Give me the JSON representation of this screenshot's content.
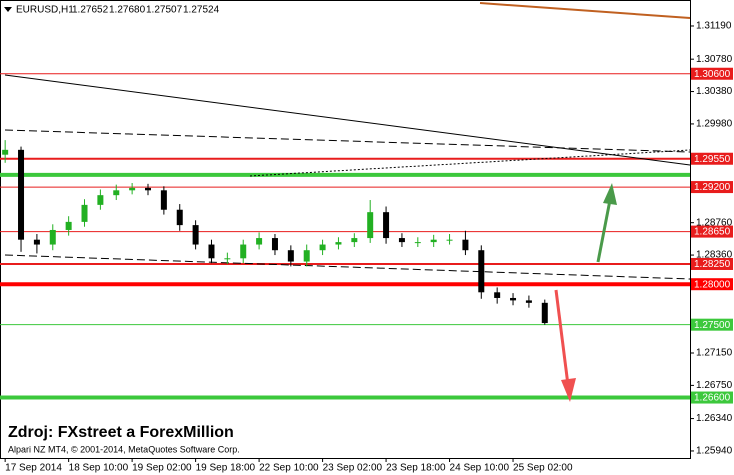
{
  "chart_data": {
    "type": "candlestick",
    "header": {
      "symbol": "EURUSD,H1",
      "quotes": [
        "1.27652",
        "1.27680",
        "1.27507",
        "1.27524"
      ]
    },
    "watermark": "Zdroj: FXstreet a ForexMillion",
    "copyright": "Alpari NZ MT4, © 2001-2014, MetaQuotes Software Corp.",
    "up_color": "#22b022",
    "down_color": "#000000",
    "x": [
      0,
      4,
      8,
      12,
      16,
      20,
      24,
      28,
      32,
      36,
      40,
      44,
      48,
      52,
      56,
      60,
      64,
      68,
      72,
      76,
      80,
      84,
      88,
      92,
      96,
      100,
      104,
      108,
      112,
      116,
      120,
      124,
      128,
      132,
      136
    ],
    "open": [
      1.296,
      1.2966,
      1.2855,
      1.2849,
      1.2867,
      1.2877,
      1.2898,
      1.291,
      1.2916,
      1.2919,
      1.2916,
      1.2892,
      1.2873,
      1.2849,
      1.2832,
      1.2832,
      1.2849,
      1.2857,
      1.2842,
      1.2828,
      1.2842,
      1.2849,
      1.2852,
      1.2857,
      1.2889,
      1.2857,
      1.2852,
      1.2852,
      1.2855,
      1.2855,
      1.2842,
      1.279,
      1.2783,
      1.278,
      1.2777
    ],
    "high": [
      1.2978,
      1.297,
      1.2862,
      1.2874,
      1.2884,
      1.2905,
      1.2917,
      1.2923,
      1.2925,
      1.2924,
      1.2921,
      1.2899,
      1.2879,
      1.2855,
      1.2839,
      1.2855,
      1.2864,
      1.2862,
      1.2848,
      1.2849,
      1.2855,
      1.2858,
      1.2863,
      1.2904,
      1.2896,
      1.2863,
      1.2858,
      1.2861,
      1.2862,
      1.2866,
      1.2848,
      1.2796,
      1.2789,
      1.2786,
      1.2781
    ],
    "low": [
      1.295,
      1.284,
      1.2838,
      1.2842,
      1.286,
      1.2871,
      1.2892,
      1.2904,
      1.2911,
      1.291,
      1.2886,
      1.2866,
      1.2843,
      1.2826,
      1.2825,
      1.2826,
      1.2843,
      1.2836,
      1.2822,
      1.2822,
      1.2836,
      1.2843,
      1.2846,
      1.2851,
      1.285,
      1.2846,
      1.2846,
      1.2846,
      1.2849,
      1.2836,
      1.2782,
      1.2776,
      1.2774,
      1.2771,
      1.275
    ],
    "close": [
      1.2966,
      1.2855,
      1.2849,
      1.2867,
      1.2877,
      1.2898,
      1.291,
      1.2916,
      1.2919,
      1.2916,
      1.2892,
      1.2873,
      1.2849,
      1.2832,
      1.2832,
      1.2849,
      1.2857,
      1.2842,
      1.2828,
      1.2842,
      1.2849,
      1.2852,
      1.2857,
      1.2889,
      1.2857,
      1.2852,
      1.2852,
      1.2855,
      1.2855,
      1.2842,
      1.279,
      1.2783,
      1.278,
      1.2777,
      1.2752
    ],
    "xlim": [
      -1.3,
      172.6
    ],
    "xticks": [
      {
        "value": 0,
        "label": "17 Sep 2014"
      },
      {
        "value": 16,
        "label": "18 Sep 10:00"
      },
      {
        "value": 32,
        "label": "19 Sep 02:00"
      },
      {
        "value": 48,
        "label": "19 Sep 18:00"
      },
      {
        "value": 64,
        "label": "22 Sep 10:00"
      },
      {
        "value": 80,
        "label": "23 Sep 02:00"
      },
      {
        "value": 96,
        "label": "23 Sep 18:00"
      },
      {
        "value": 112,
        "label": "24 Sep 10:00"
      },
      {
        "value": 128,
        "label": "25 Sep 02:00"
      }
    ],
    "ylim": [
      1.25853,
      1.31511
    ],
    "yticks": [
      {
        "value": 1.3119,
        "label": "1.31190"
      },
      {
        "value": 1.3078,
        "label": "1.30780"
      },
      {
        "value": 1.3038,
        "label": "1.30380"
      },
      {
        "value": 1.2998,
        "label": "1.29980"
      },
      {
        "value": 1.2876,
        "label": "1.28760"
      },
      {
        "value": 1.2836,
        "label": "1.28360"
      },
      {
        "value": 1.2715,
        "label": "1.27150"
      },
      {
        "value": 1.2675,
        "label": "1.26750"
      },
      {
        "value": 1.2634,
        "label": "1.26340"
      },
      {
        "value": 1.2594,
        "label": "1.25940"
      }
    ],
    "levels": [
      {
        "value": 1.306,
        "label": "1.30600",
        "color": "#e81c1c",
        "width": 1
      },
      {
        "value": 1.2955,
        "label": "1.29550",
        "color": "#e81c1c",
        "width": 2
      },
      {
        "value": 1.2935,
        "color": "#3cc83c",
        "width": 4
      },
      {
        "value": 1.292,
        "label": "1.29200",
        "color": "#e81c1c",
        "width": 1
      },
      {
        "value": 1.2865,
        "label": "1.28650",
        "color": "#e81c1c",
        "width": 1
      },
      {
        "value": 1.2825,
        "label": "1.28250",
        "color": "#e81c1c",
        "width": 2
      },
      {
        "value": 1.28,
        "label": "1.28000",
        "color": "#ff0000",
        "width": 4
      },
      {
        "value": 1.275,
        "label": "1.27500",
        "color": "#3cc83c",
        "width": 1
      },
      {
        "value": 1.266,
        "label": "1.26600",
        "color": "#3cc83c",
        "width": 4
      }
    ]
  }
}
